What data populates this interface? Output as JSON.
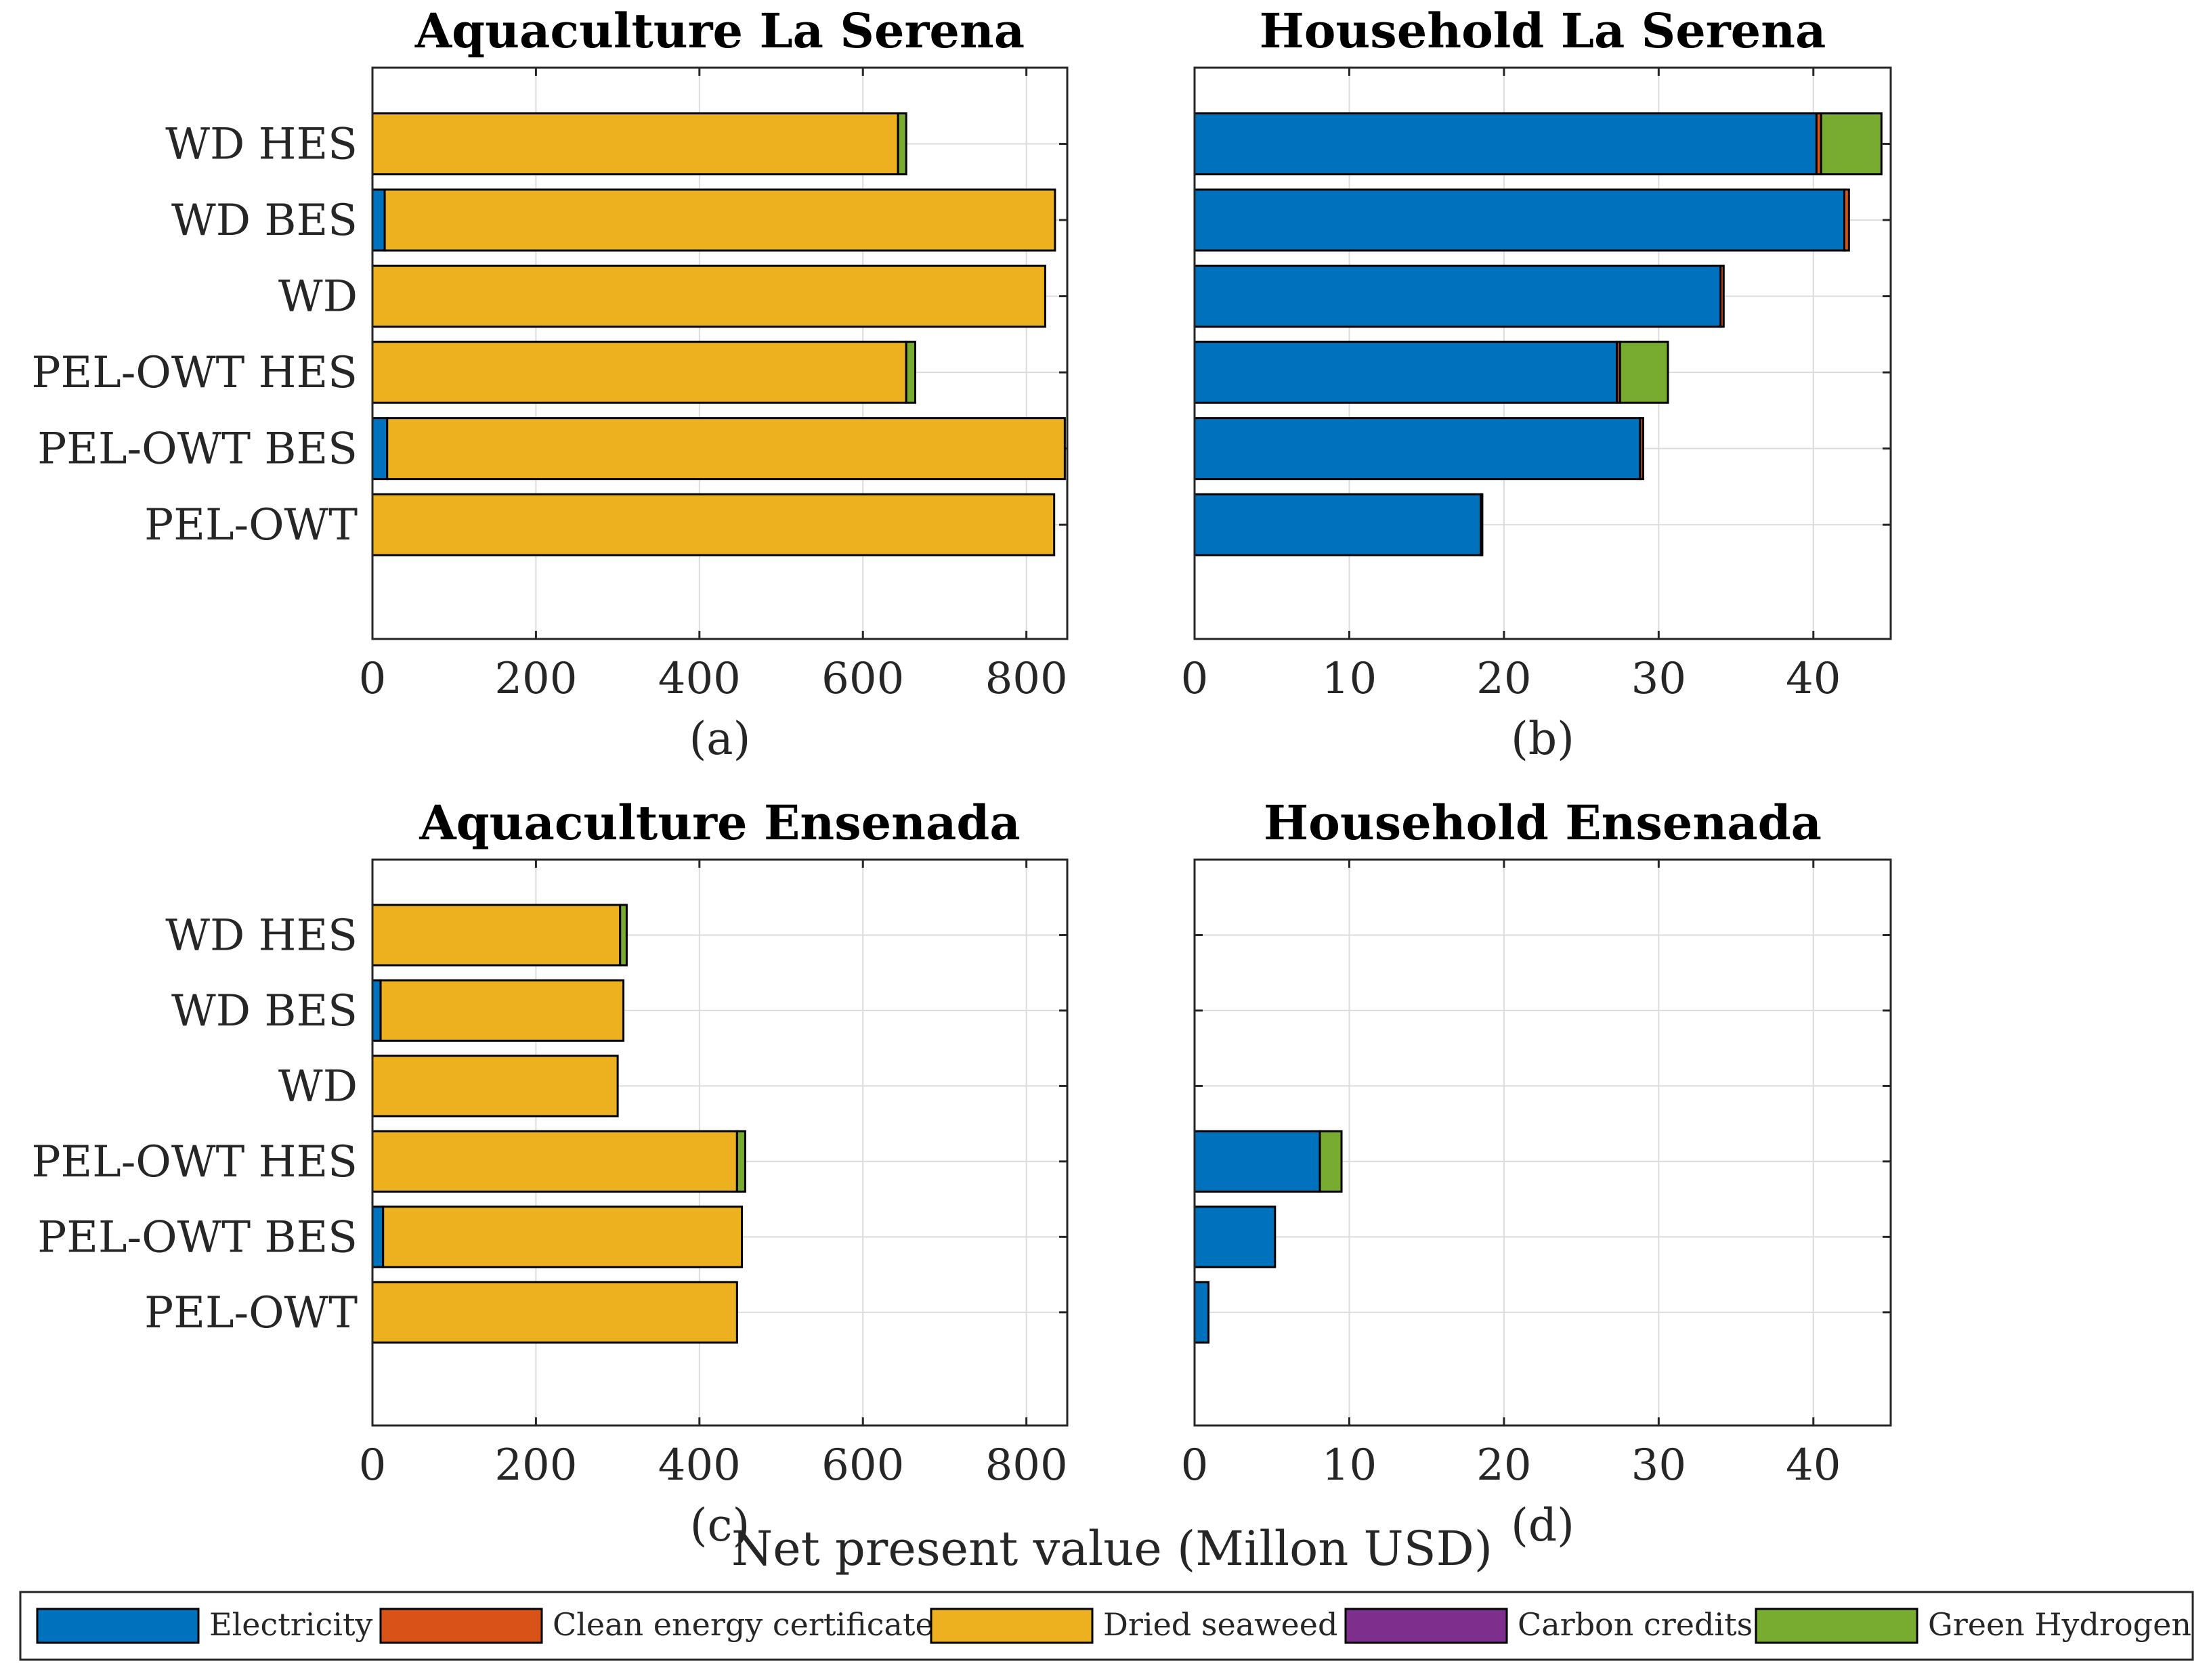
{
  "chart_data": [
    {
      "id": "a",
      "type": "bar",
      "orientation": "horizontal",
      "stacked": true,
      "title": "Aquaculture La Serena",
      "panel_label": "(a)",
      "categories": [
        "WD HES",
        "WD BES",
        "WD",
        "PEL-OWT HES",
        "PEL-OWT BES",
        "PEL-OWT"
      ],
      "xlim": [
        0,
        850
      ],
      "xticks": [
        0,
        200,
        400,
        600,
        800
      ],
      "grid": true,
      "series": [
        {
          "name": "Electricity",
          "values": [
            0,
            15,
            0,
            0,
            18,
            0
          ]
        },
        {
          "name": "Clean energy certificates",
          "values": [
            0,
            0,
            0,
            0,
            0,
            0
          ]
        },
        {
          "name": "Dried seaweed",
          "values": [
            643,
            820,
            823,
            653,
            829,
            834
          ]
        },
        {
          "name": "Carbon credits",
          "values": [
            0,
            0,
            0,
            0,
            0,
            0
          ]
        },
        {
          "name": "Green Hydrogen",
          "values": [
            10,
            0,
            0,
            11,
            0,
            0
          ]
        }
      ]
    },
    {
      "id": "b",
      "type": "bar",
      "orientation": "horizontal",
      "stacked": true,
      "title": "Household La Serena",
      "panel_label": "(b)",
      "categories": [
        "WD HES",
        "WD BES",
        "WD",
        "PEL-OWT HES",
        "PEL-OWT BES",
        "PEL-OWT"
      ],
      "xlim": [
        0,
        45
      ],
      "xticks": [
        0,
        10,
        20,
        30,
        40
      ],
      "grid": true,
      "series": [
        {
          "name": "Electricity",
          "values": [
            40.2,
            42.0,
            34.0,
            27.3,
            28.8,
            18.5
          ]
        },
        {
          "name": "Clean energy certificates",
          "values": [
            0.3,
            0.3,
            0.2,
            0.2,
            0.2,
            0.1
          ]
        },
        {
          "name": "Dried seaweed",
          "values": [
            0,
            0,
            0,
            0,
            0,
            0
          ]
        },
        {
          "name": "Carbon credits",
          "values": [
            0,
            0,
            0,
            0,
            0,
            0
          ]
        },
        {
          "name": "Green Hydrogen",
          "values": [
            3.9,
            0,
            0,
            3.1,
            0,
            0
          ]
        }
      ]
    },
    {
      "id": "c",
      "type": "bar",
      "orientation": "horizontal",
      "stacked": true,
      "title": "Aquaculture Ensenada",
      "panel_label": "(c)",
      "categories": [
        "WD HES",
        "WD BES",
        "WD",
        "PEL-OWT HES",
        "PEL-OWT BES",
        "PEL-OWT"
      ],
      "xlim": [
        0,
        850
      ],
      "xticks": [
        0,
        200,
        400,
        600,
        800
      ],
      "grid": true,
      "series": [
        {
          "name": "Electricity",
          "values": [
            0,
            10,
            0,
            0,
            13,
            0
          ]
        },
        {
          "name": "Clean energy certificates",
          "values": [
            0,
            0,
            0,
            0,
            0,
            0
          ]
        },
        {
          "name": "Dried seaweed",
          "values": [
            303,
            297,
            300,
            446,
            439,
            446
          ]
        },
        {
          "name": "Carbon credits",
          "values": [
            0,
            0,
            0,
            0,
            0,
            0
          ]
        },
        {
          "name": "Green Hydrogen",
          "values": [
            8,
            0,
            0,
            10,
            0,
            0
          ]
        }
      ]
    },
    {
      "id": "d",
      "type": "bar",
      "orientation": "horizontal",
      "stacked": true,
      "title": "Household Ensenada",
      "panel_label": "(d)",
      "categories": [
        "WD HES",
        "WD BES",
        "WD",
        "PEL-OWT HES",
        "PEL-OWT BES",
        "PEL-OWT"
      ],
      "xlim": [
        0,
        45
      ],
      "xticks": [
        0,
        10,
        20,
        30,
        40
      ],
      "grid": true,
      "series": [
        {
          "name": "Electricity",
          "values": [
            0,
            0,
            0,
            8.1,
            5.2,
            0.9
          ]
        },
        {
          "name": "Clean energy certificates",
          "values": [
            0,
            0,
            0,
            0,
            0,
            0
          ]
        },
        {
          "name": "Dried seaweed",
          "values": [
            0,
            0,
            0,
            0,
            0,
            0
          ]
        },
        {
          "name": "Carbon credits",
          "values": [
            0,
            0,
            0,
            0,
            0,
            0
          ]
        },
        {
          "name": "Green Hydrogen",
          "values": [
            0,
            0,
            0,
            1.4,
            0,
            0
          ]
        }
      ]
    }
  ],
  "figure": {
    "xlabel": "Net present value (Millon USD)"
  },
  "legend": {
    "placement": "bottom",
    "items": [
      {
        "name": "Electricity",
        "color": "#0072BD"
      },
      {
        "name": "Clean energy certificates",
        "color": "#D95319"
      },
      {
        "name": "Dried seaweed",
        "color": "#EDB120"
      },
      {
        "name": "Carbon credits",
        "color": "#7E2F8E"
      },
      {
        "name": "Green Hydrogen",
        "color": "#77AC30"
      }
    ]
  }
}
